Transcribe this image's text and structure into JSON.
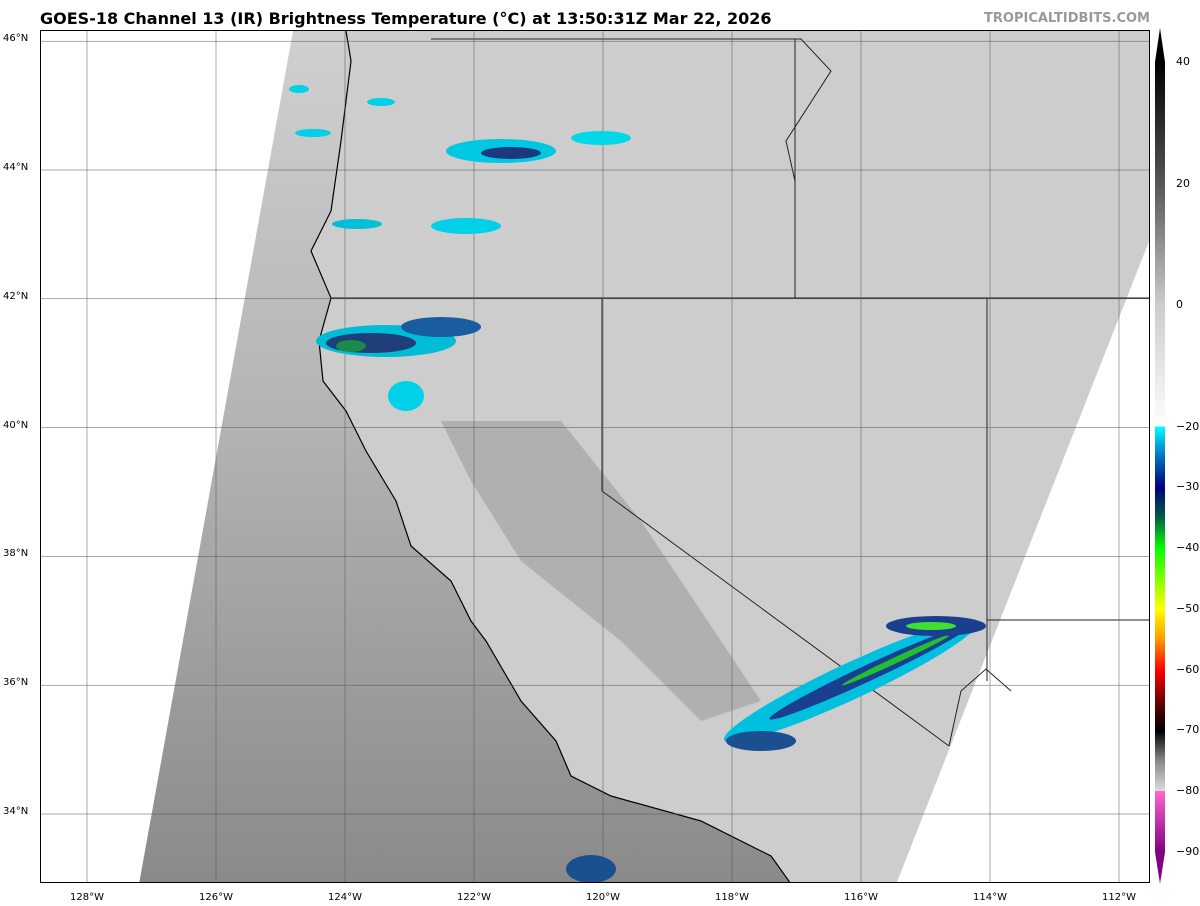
{
  "header": {
    "title": "GOES-18 Channel 13 (IR) Brightness Temperature (°C) at 13:50:31Z Mar 22, 2026",
    "brand": "TROPICALTIDBITS.COM"
  },
  "map": {
    "lat_ticks": [
      "34°N",
      "36°N",
      "38°N",
      "40°N",
      "42°N",
      "44°N",
      "46°N"
    ],
    "lat_values": [
      34,
      36,
      38,
      40,
      42,
      44,
      46
    ],
    "lon_ticks": [
      "128°W",
      "126°W",
      "124°W",
      "122°W",
      "120°W",
      "118°W",
      "116°W",
      "114°W",
      "112°W"
    ],
    "lon_values": [
      -128,
      -126,
      -124,
      -122,
      -120,
      -118,
      -116,
      -114,
      -112
    ]
  },
  "colorbar": {
    "labels": [
      "40",
      "20",
      "0",
      "−20",
      "−30",
      "−40",
      "−50",
      "−60",
      "−70",
      "−80",
      "−90"
    ],
    "values": [
      40,
      20,
      0,
      -20,
      -30,
      -40,
      -50,
      -60,
      -70,
      -80,
      -90
    ],
    "range": [
      -90,
      40
    ],
    "colors": {
      "warm": "#000000",
      "cold_cloud": "#00ffff",
      "deep": "#000080",
      "green": "#00ff00",
      "yellow": "#ffff00",
      "red": "#ff0000",
      "magenta": "#ff66cc",
      "purple": "#800080"
    }
  }
}
